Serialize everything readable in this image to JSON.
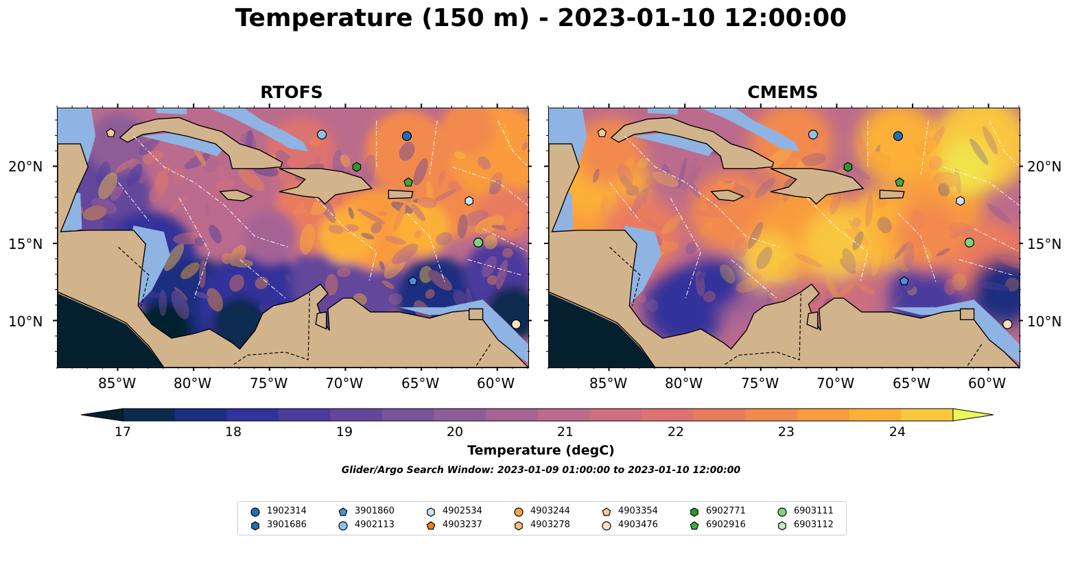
{
  "title": "Temperature (150 m) - 2023-01-10 12:00:00",
  "panels": [
    {
      "title": "RTOFS"
    },
    {
      "title": "CMEMS"
    }
  ],
  "axes": {
    "x_labels": [
      "85°W",
      "80°W",
      "75°W",
      "70°W",
      "65°W",
      "60°W"
    ],
    "y_labels": [
      "20°N",
      "15°N",
      "10°N"
    ]
  },
  "colorbar": {
    "label": "Temperature (degC)",
    "ticks": [
      "17",
      "18",
      "19",
      "20",
      "21",
      "22",
      "23",
      "24"
    ],
    "range": [
      16.75,
      24.75
    ],
    "colors": [
      "#04202f",
      "#0b2a4f",
      "#1c2e80",
      "#32339a",
      "#4b3a9c",
      "#62479b",
      "#795499",
      "#8e5d98",
      "#a56494",
      "#bb6b8c",
      "#cc6f7e",
      "#dc7370",
      "#e97c5f",
      "#f38a4d",
      "#f99b3e",
      "#fcb038",
      "#f9c63f",
      "#f0e24c",
      "#eaf95a"
    ]
  },
  "search_window": "Glider/Argo Search Window: 2023-01-09 01:00:00 to 2023-01-10 12:00:00",
  "map_colors": {
    "land": "#d2b48c",
    "shallow": "#8fb4e3",
    "coast": "#000000"
  },
  "legend": [
    {
      "id": "1902314",
      "shape": "circle",
      "color": "#1f6fb4"
    },
    {
      "id": "3901686",
      "shape": "hexagon",
      "color": "#1f6fb4"
    },
    {
      "id": "3901860",
      "shape": "pentagon",
      "color": "#4a90d9"
    },
    {
      "id": "4902113",
      "shape": "circle",
      "color": "#8fc1ea"
    },
    {
      "id": "4902534",
      "shape": "hexagon",
      "color": "#cde6f7"
    },
    {
      "id": "4903237",
      "shape": "pentagon",
      "color": "#f07f12"
    },
    {
      "id": "4903244",
      "shape": "circle",
      "color": "#f5a045"
    },
    {
      "id": "4903278",
      "shape": "hexagon",
      "color": "#f9bf7e"
    },
    {
      "id": "4903354",
      "shape": "pentagon",
      "color": "#f9c89a"
    },
    {
      "id": "4903476",
      "shape": "circle",
      "color": "#fde0c2"
    },
    {
      "id": "6902771",
      "shape": "hexagon",
      "color": "#2a9a2a"
    },
    {
      "id": "6902916",
      "shape": "pentagon",
      "color": "#3aae3a"
    },
    {
      "id": "6903111",
      "shape": "circle",
      "color": "#7fd37f"
    },
    {
      "id": "6903112",
      "shape": "hexagon",
      "color": "#c3efc0"
    }
  ],
  "floats": [
    {
      "id": "4903354",
      "lon": -85.5,
      "lat": 22.2
    },
    {
      "id": "4902113",
      "lon": -71.6,
      "lat": 22.1
    },
    {
      "id": "1902314",
      "lon": -66.0,
      "lat": 22.0
    },
    {
      "id": "6902771",
      "lon": -69.3,
      "lat": 20.0
    },
    {
      "id": "6902916",
      "lon": -65.9,
      "lat": 19.0
    },
    {
      "id": "4902534",
      "lon": -61.9,
      "lat": 17.8
    },
    {
      "id": "6903111",
      "lon": -61.3,
      "lat": 15.1
    },
    {
      "id": "3901860",
      "lon": -65.6,
      "lat": 12.6
    },
    {
      "id": "4903476",
      "lon": -58.8,
      "lat": 9.8
    }
  ]
}
